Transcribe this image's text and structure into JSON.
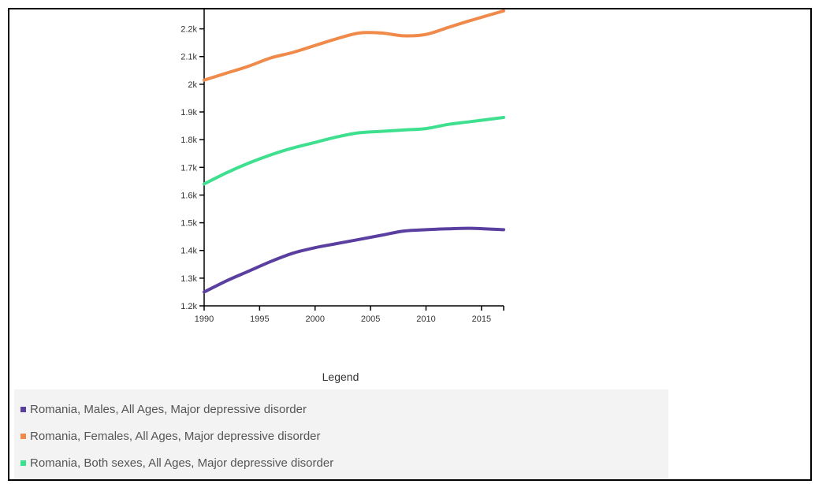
{
  "chart_data": {
    "type": "line",
    "x": [
      1990,
      1992,
      1994,
      1996,
      1998,
      2000,
      2002,
      2004,
      2006,
      2008,
      2010,
      2012,
      2014,
      2017
    ],
    "xticks": [
      "1990",
      "1995",
      "2000",
      "2005",
      "2010",
      "2015"
    ],
    "xtick_values": [
      1990,
      1995,
      2000,
      2005,
      2010,
      2015
    ],
    "xlim": [
      1990,
      2017
    ],
    "yticks": [
      "1.2k",
      "1.3k",
      "1.4k",
      "1.5k",
      "1.6k",
      "1.7k",
      "1.8k",
      "1.9k",
      "2k",
      "2.1k",
      "2.2k"
    ],
    "ytick_values": [
      1200,
      1300,
      1400,
      1500,
      1600,
      1700,
      1800,
      1900,
      2000,
      2100,
      2200
    ],
    "ylim": [
      1200,
      2270
    ],
    "series": [
      {
        "name": "Romania, Males, All Ages, Major depressive disorder",
        "color": "#5b3fa0",
        "values": [
          1250,
          1290,
          1325,
          1360,
          1390,
          1410,
          1425,
          1440,
          1455,
          1470,
          1475,
          1478,
          1480,
          1475
        ]
      },
      {
        "name": "Romania, Females, All Ages, Major depressive disorder",
        "color": "#ef8a4a",
        "values": [
          2015,
          2040,
          2065,
          2095,
          2115,
          2140,
          2165,
          2185,
          2185,
          2175,
          2180,
          2205,
          2230,
          2265
        ]
      },
      {
        "name": "Romania, Both sexes, All Ages, Major depressive disorder",
        "color": "#3ee08f",
        "values": [
          1640,
          1680,
          1715,
          1745,
          1770,
          1790,
          1810,
          1825,
          1830,
          1835,
          1840,
          1855,
          1865,
          1880
        ]
      }
    ]
  },
  "legend": {
    "title": "Legend",
    "items": [
      {
        "label": "Romania, Males, All Ages, Major depressive disorder",
        "color": "#5b3fa0"
      },
      {
        "label": "Romania, Females, All Ages, Major depressive disorder",
        "color": "#ef8a4a"
      },
      {
        "label": "Romania, Both sexes, All Ages, Major depressive disorder",
        "color": "#3ee08f"
      }
    ]
  }
}
